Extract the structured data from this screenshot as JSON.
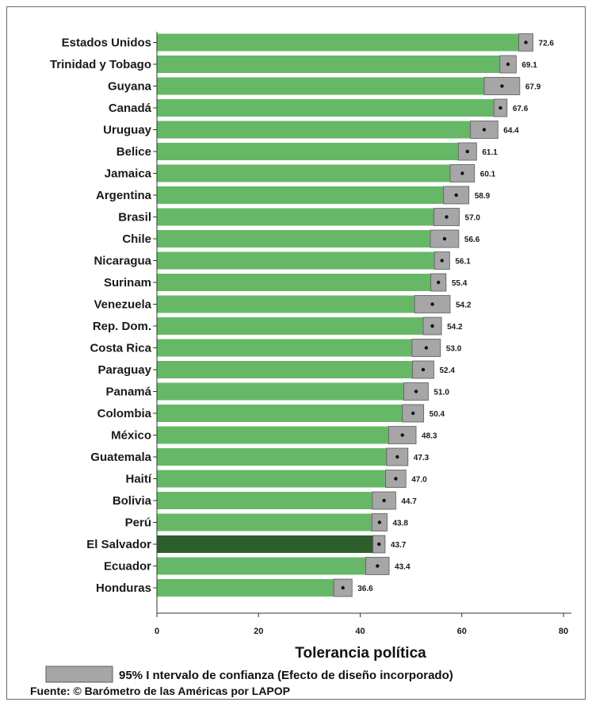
{
  "chart_data": {
    "type": "bar",
    "orientation": "horizontal",
    "categories": [
      "Estados Unidos",
      "Trinidad y Tobago",
      "Guyana",
      "Canadá",
      "Uruguay",
      "Belice",
      "Jamaica",
      "Argentina",
      "Brasil",
      "Chile",
      "Nicaragua",
      "Surinam",
      "Venezuela",
      "Rep. Dom.",
      "Costa Rica",
      "Paraguay",
      "Panamá",
      "Colombia",
      "México",
      "Guatemala",
      "Haití",
      "Bolivia",
      "Perú",
      "El Salvador",
      "Ecuador",
      "Honduras"
    ],
    "values": [
      72.6,
      69.1,
      67.9,
      67.6,
      64.4,
      61.1,
      60.1,
      58.9,
      57.0,
      56.6,
      56.1,
      55.4,
      54.2,
      54.2,
      53.0,
      52.4,
      51.0,
      50.4,
      48.3,
      47.3,
      47.0,
      44.7,
      43.8,
      43.7,
      43.4,
      36.6
    ],
    "value_labels": [
      "72.6",
      "69.1",
      "67.9",
      "67.6",
      "64.4",
      "61.1",
      "60.1",
      "58.9",
      "57.0",
      "56.6",
      "56.1",
      "55.4",
      "54.2",
      "54.2",
      "53.0",
      "52.4",
      "51.0",
      "50.4",
      "48.3",
      "47.3",
      "47.0",
      "44.7",
      "43.8",
      "43.7",
      "43.4",
      "36.6"
    ],
    "ci_low": [
      71.2,
      67.5,
      64.4,
      66.3,
      61.7,
      59.3,
      57.7,
      56.4,
      54.5,
      53.8,
      54.6,
      53.9,
      50.7,
      52.4,
      50.2,
      50.3,
      48.6,
      48.3,
      45.6,
      45.2,
      45.0,
      42.4,
      42.3,
      42.5,
      41.1,
      34.8
    ],
    "ci_high": [
      74.0,
      70.7,
      71.4,
      68.9,
      67.1,
      62.9,
      62.5,
      61.4,
      59.5,
      59.4,
      57.6,
      56.9,
      57.7,
      56.0,
      55.8,
      54.5,
      53.4,
      52.5,
      51.0,
      49.4,
      49.0,
      47.0,
      45.3,
      44.9,
      45.7,
      38.4
    ],
    "highlight": "El Salvador",
    "x_ticks": [
      "0",
      "20",
      "40",
      "60",
      "80"
    ],
    "xlim": [
      0,
      80
    ],
    "xlabel": "Tolerancia política",
    "colors": {
      "bar": "#66b866",
      "highlight": "#2c5e2c",
      "ci": "#a6a6a6",
      "ci_border": "#5a5a5a"
    }
  },
  "legend": {
    "label": "95% I ntervalo de confianza (Efecto de diseño incorporado)"
  },
  "source": "Fuente: © Barómetro de las Américas por LAPOP"
}
